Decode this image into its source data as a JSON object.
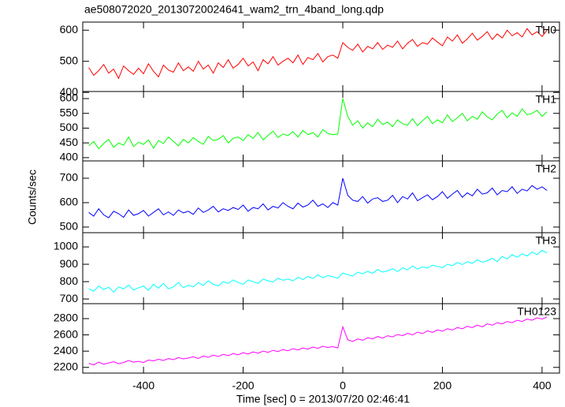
{
  "chart_data": {
    "type": "line",
    "title": "ae508072020_20130720024641_wam2_trn_4band_long.qdp",
    "xlabel": "Time [sec] 0 = 2013/07/20 02:46:41",
    "ylabel": "Counts/sec",
    "xlim": [
      -522,
      435
    ],
    "xticks": [
      -400,
      -200,
      0,
      200,
      400
    ],
    "x": [
      -510,
      -500,
      -490,
      -480,
      -470,
      -460,
      -450,
      -440,
      -430,
      -420,
      -410,
      -400,
      -390,
      -380,
      -370,
      -360,
      -350,
      -340,
      -330,
      -320,
      -310,
      -300,
      -290,
      -280,
      -270,
      -260,
      -250,
      -240,
      -230,
      -220,
      -210,
      -200,
      -190,
      -180,
      -170,
      -160,
      -150,
      -140,
      -130,
      -120,
      -110,
      -100,
      -90,
      -80,
      -70,
      -60,
      -50,
      -40,
      -30,
      -20,
      -10,
      0,
      10,
      20,
      30,
      40,
      50,
      60,
      70,
      80,
      90,
      100,
      110,
      120,
      130,
      140,
      150,
      160,
      170,
      180,
      190,
      200,
      210,
      220,
      230,
      240,
      250,
      260,
      270,
      280,
      290,
      300,
      310,
      320,
      330,
      340,
      350,
      360,
      370,
      380,
      390,
      400,
      410
    ],
    "panels": [
      {
        "label": "TH0",
        "color": "#ff0000",
        "ylim": [
          403,
          626
        ],
        "yticks": [
          400,
          500,
          600
        ],
        "values": [
          480,
          455,
          470,
          490,
          462,
          475,
          445,
          485,
          470,
          458,
          478,
          460,
          492,
          468,
          450,
          488,
          472,
          465,
          495,
          470,
          482,
          468,
          500,
          475,
          488,
          462,
          495,
          480,
          505,
          478,
          490,
          510,
          485,
          498,
          470,
          505,
          492,
          515,
          488,
          500,
          510,
          495,
          520,
          490,
          512,
          505,
          525,
          498,
          515,
          520,
          510,
          560,
          545,
          535,
          555,
          530,
          548,
          540,
          560,
          538,
          552,
          545,
          565,
          540,
          558,
          570,
          548,
          560,
          555,
          575,
          562,
          550,
          578,
          565,
          585,
          558,
          572,
          590,
          568,
          580,
          595,
          570,
          588,
          575,
          600,
          582,
          592,
          578,
          605,
          585,
          595,
          580,
          600
        ]
      },
      {
        "label": "TH1",
        "color": "#00ff00",
        "ylim": [
          389,
          624
        ],
        "yticks": [
          400,
          450,
          500,
          550,
          600
        ],
        "values": [
          440,
          455,
          430,
          448,
          462,
          435,
          450,
          442,
          470,
          438,
          452,
          445,
          460,
          432,
          458,
          448,
          470,
          455,
          440,
          462,
          450,
          468,
          455,
          445,
          472,
          458,
          462,
          475,
          450,
          465,
          470,
          458,
          478,
          465,
          485,
          460,
          475,
          490,
          468,
          480,
          475,
          488,
          470,
          492,
          478,
          485,
          470,
          495,
          482,
          478,
          480,
          600,
          540,
          510,
          525,
          500,
          518,
          505,
          530,
          512,
          520,
          505,
          528,
          515,
          510,
          532,
          508,
          525,
          540,
          515,
          528,
          518,
          545,
          522,
          535,
          550,
          525,
          540,
          530,
          555,
          538,
          528,
          548,
          560,
          535,
          552,
          540,
          565,
          545,
          550,
          560,
          540,
          555
        ]
      },
      {
        "label": "TH2",
        "color": "#0000ff",
        "ylim": [
          477,
          771
        ],
        "yticks": [
          500,
          600,
          700
        ],
        "values": [
          560,
          545,
          575,
          550,
          538,
          565,
          555,
          540,
          570,
          548,
          555,
          568,
          545,
          560,
          575,
          550,
          562,
          548,
          570,
          558,
          565,
          552,
          578,
          560,
          570,
          585,
          562,
          575,
          568,
          580,
          572,
          590,
          565,
          580,
          575,
          595,
          570,
          585,
          578,
          600,
          585,
          575,
          598,
          582,
          590,
          610,
          585,
          595,
          580,
          600,
          590,
          700,
          630,
          610,
          605,
          625,
          598,
          615,
          620,
          605,
          610,
          630,
          600,
          625,
          615,
          640,
          608,
          620,
          632,
          612,
          625,
          645,
          618,
          635,
          650,
          622,
          640,
          628,
          655,
          635,
          640,
          660,
          632,
          650,
          645,
          665,
          638,
          655,
          648,
          670,
          655,
          665,
          650
        ]
      },
      {
        "label": "TH3",
        "color": "#00ffff",
        "ylim": [
          673,
          1082
        ],
        "yticks": [
          700,
          800,
          900,
          1000
        ],
        "values": [
          760,
          745,
          775,
          755,
          768,
          740,
          770,
          758,
          780,
          752,
          765,
          775,
          750,
          785,
          762,
          790,
          758,
          770,
          795,
          765,
          780,
          770,
          795,
          778,
          805,
          785,
          775,
          800,
          790,
          810,
          795,
          785,
          810,
          800,
          790,
          815,
          805,
          798,
          820,
          808,
          815,
          805,
          825,
          812,
          830,
          818,
          840,
          822,
          835,
          828,
          820,
          850,
          840,
          832,
          855,
          845,
          860,
          848,
          870,
          855,
          862,
          875,
          858,
          880,
          868,
          890,
          872,
          885,
          878,
          895,
          888,
          880,
          900,
          892,
          910,
          898,
          915,
          905,
          925,
          912,
          920,
          935,
          915,
          945,
          930,
          955,
          940,
          960,
          948,
          970,
          955,
          980,
          965
        ]
      },
      {
        "label": "TH0123",
        "color": "#ff00ff",
        "ylim": [
          2130,
          2984
        ],
        "yticks": [
          2200,
          2400,
          2600,
          2800
        ],
        "values": [
          2250,
          2230,
          2265,
          2240,
          2255,
          2270,
          2245,
          2260,
          2285,
          2265,
          2275,
          2260,
          2290,
          2280,
          2300,
          2285,
          2310,
          2295,
          2320,
          2305,
          2315,
          2330,
          2310,
          2340,
          2325,
          2350,
          2335,
          2360,
          2345,
          2370,
          2355,
          2380,
          2365,
          2390,
          2375,
          2400,
          2385,
          2410,
          2395,
          2420,
          2405,
          2430,
          2415,
          2440,
          2425,
          2450,
          2435,
          2460,
          2445,
          2455,
          2440,
          2700,
          2540,
          2520,
          2550,
          2535,
          2565,
          2550,
          2580,
          2560,
          2590,
          2575,
          2605,
          2590,
          2620,
          2600,
          2635,
          2615,
          2650,
          2630,
          2660,
          2645,
          2675,
          2660,
          2690,
          2675,
          2705,
          2690,
          2720,
          2700,
          2735,
          2720,
          2750,
          2735,
          2765,
          2750,
          2780,
          2765,
          2795,
          2780,
          2810,
          2795,
          2820
        ]
      }
    ]
  }
}
